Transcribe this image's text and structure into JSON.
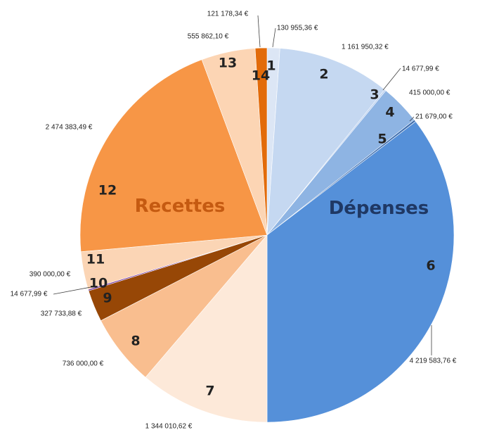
{
  "chart_data": {
    "type": "pie",
    "start_angle_deg": 0,
    "direction": "clockwise",
    "group_labels": {
      "depenses": "Dépenses",
      "recettes": "Recettes"
    },
    "slices": [
      {
        "label": "1",
        "value": 130955.36,
        "value_label": "130 955,36 €",
        "group": "depenses",
        "color": "#dce6f5"
      },
      {
        "label": "2",
        "value": 1161950.32,
        "value_label": "1 161 950,32 €",
        "group": "depenses",
        "color": "#c5d8f1"
      },
      {
        "label": "3",
        "value": 14677.99,
        "value_label": "14 677,99 €",
        "group": "depenses",
        "color": "#b4cbed"
      },
      {
        "label": "4",
        "value": 415000.0,
        "value_label": "415 000,00 €",
        "group": "depenses",
        "color": "#8eb4e3"
      },
      {
        "label": "5",
        "value": 21679.0,
        "value_label": "21 679,00 €",
        "group": "depenses",
        "color": "#3f6fb0"
      },
      {
        "label": "6",
        "value": 4219583.76,
        "value_label": "4 219 583,76 €",
        "group": "depenses",
        "color": "#5590d9"
      },
      {
        "label": "7",
        "value": 1344010.62,
        "value_label": "1 344 010,62 €",
        "group": "recettes",
        "color": "#fde9d9"
      },
      {
        "label": "8",
        "value": 736000.0,
        "value_label": "736 000,00 €",
        "group": "recettes",
        "color": "#f9be8f"
      },
      {
        "label": "9",
        "value": 327733.88,
        "value_label": "327 733,88 €",
        "group": "recettes",
        "color": "#974706"
      },
      {
        "label": "10",
        "value": 14677.99,
        "value_label": "14 677,99 €",
        "group": "recettes",
        "color": "#7030a0"
      },
      {
        "label": "11",
        "value": 390000.0,
        "value_label": "390 000,00 €",
        "group": "recettes",
        "color": "#fbd5b5"
      },
      {
        "label": "12",
        "value": 2474383.49,
        "value_label": "2 474 383,49 €",
        "group": "recettes",
        "color": "#f79646"
      },
      {
        "label": "13",
        "value": 555862.1,
        "value_label": "555 862,10 €",
        "group": "recettes",
        "color": "#fcd5b4"
      },
      {
        "label": "14",
        "value": 121178.34,
        "value_label": "121 178,34 €",
        "group": "recettes",
        "color": "#e26b0a"
      }
    ]
  }
}
